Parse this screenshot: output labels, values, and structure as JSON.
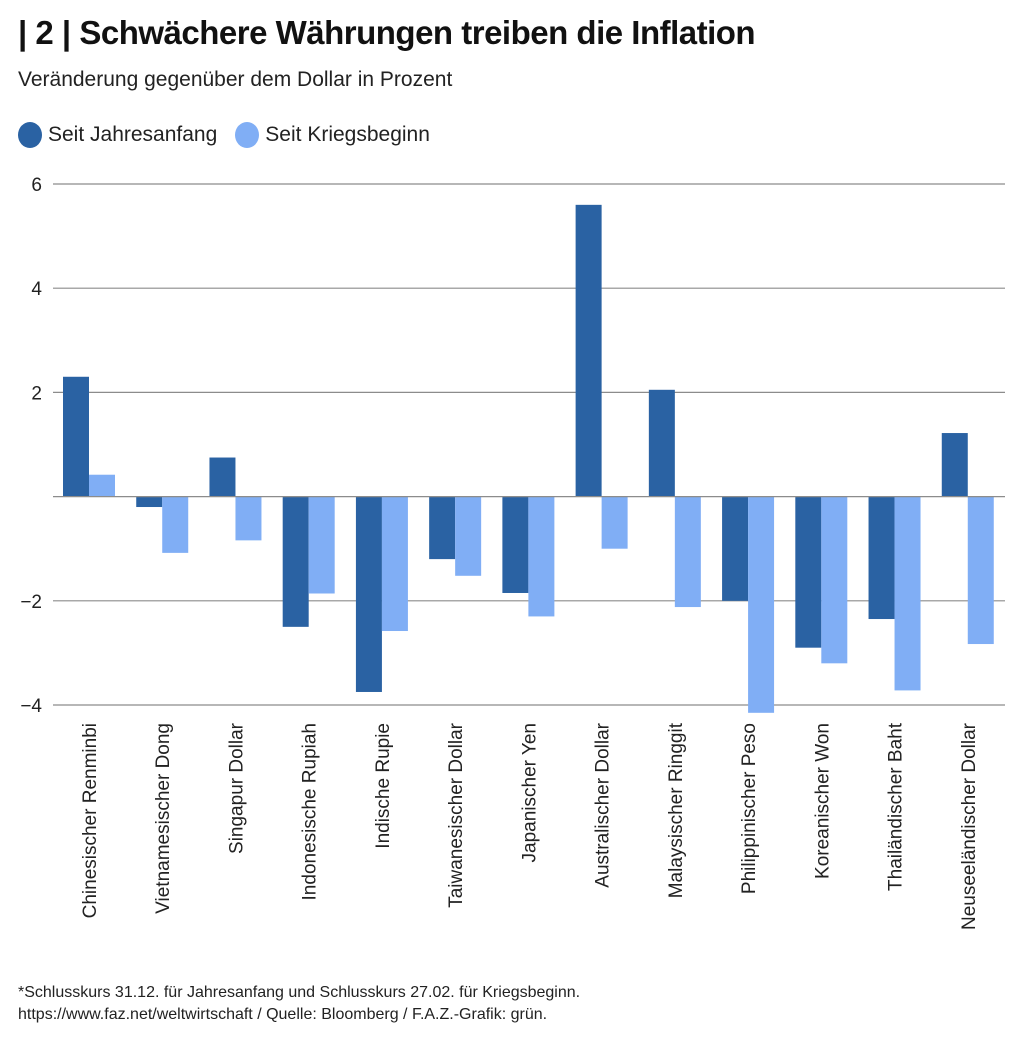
{
  "header": {
    "title": "| 2 | Schwächere Währungen treiben die Inflation",
    "subtitle": "Veränderung gegenüber dem Dollar in Prozent"
  },
  "legend": [
    {
      "label": "Seit Jahresanfang",
      "color": "#2a62a3"
    },
    {
      "label": "Seit Kriegsbeginn",
      "color": "#80aef5"
    }
  ],
  "footer": {
    "note": "*Schlusskurs 31.12. für Jahresanfang und Schlusskurs 27.02. für Kriegsbeginn.",
    "source": "https://www.faz.net/weltwirtschaft / Quelle: Bloomberg / F.A.Z.-Grafik: grün."
  },
  "chart_data": {
    "type": "bar",
    "title": "| 2 | Schwächere Währungen treiben die Inflation",
    "subtitle": "Veränderung gegenüber dem Dollar in Prozent",
    "xlabel": "",
    "ylabel": "",
    "ylim": [
      -4,
      6
    ],
    "yticks": [
      6,
      4,
      2,
      0,
      -2,
      -4
    ],
    "ytick_labels": [
      "6",
      "4",
      "2",
      "",
      "−2",
      "−4"
    ],
    "grid": true,
    "legend_position": "top-left",
    "categories": [
      "Chinesischer Renminbi",
      "Vietnamesischer Dong",
      "Singapur Dollar",
      "Indonesische Rupiah",
      "Indische Rupie",
      "Taiwanesischer Dollar",
      "Japanischer Yen",
      "Australischer Dollar",
      "Malaysischer Ringgit",
      "Philippinischer Peso",
      "Koreanischer Won",
      "Thailändischer Baht",
      "Neuseeländischer Dollar"
    ],
    "series": [
      {
        "name": "Seit Jahresanfang",
        "color": "#2a62a3",
        "values": [
          2.3,
          -0.2,
          0.75,
          -2.5,
          -3.75,
          -1.2,
          -1.85,
          5.6,
          2.05,
          -2.0,
          -2.9,
          -2.35,
          1.22
        ]
      },
      {
        "name": "Seit Kriegsbeginn",
        "color": "#80aef5",
        "values": [
          0.42,
          -1.08,
          -0.84,
          -1.86,
          -2.58,
          -1.52,
          -2.3,
          -1.0,
          -2.12,
          -4.15,
          -3.2,
          -3.72,
          -2.83
        ]
      }
    ]
  }
}
